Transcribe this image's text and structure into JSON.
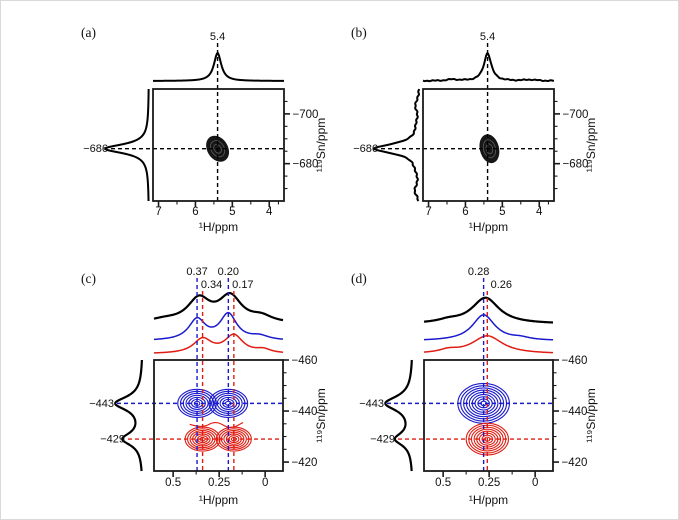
{
  "figure": {
    "background": "#ffffff",
    "units": "ppm",
    "palette": {
      "black": "#000000",
      "blue": "#1a1acd",
      "red": "#e01d12"
    }
  },
  "chart_data": [
    {
      "panel_id": "a",
      "panel_label": "(a)",
      "row": "top",
      "type": "heatmap",
      "subtype": "2D 1H-119Sn correlation NMR contour plot",
      "xlabel": "¹H/ppm",
      "ylabel": "¹¹⁹Sn/ppm",
      "xlim": [
        7.15,
        3.6
      ],
      "ylim": [
        -710,
        -665
      ],
      "x_ticks": [
        7,
        6,
        5,
        4
      ],
      "x_tick_labels": [
        "7",
        "6",
        "5",
        "4"
      ],
      "x_minor": [
        6.5,
        5.5,
        4.5,
        3.75
      ],
      "y_ticks": [
        -700,
        -680
      ],
      "y_tick_labels": [
        "−700",
        "−680"
      ],
      "y_minor": [
        -705,
        -695,
        -690,
        -685,
        -675,
        -670
      ],
      "cross_peaks": [
        {
          "style": "filled",
          "color": "#161616",
          "rings": 0,
          "peaks": [
            {
              "x": 5.4,
              "y": -686,
              "wx": 0.28,
              "wy": 5.6,
              "rot": -32
            }
          ]
        }
      ],
      "x_markers": [
        {
          "value": 5.4,
          "label": "5.4",
          "color": "#000000",
          "row": 0,
          "dx": 0
        }
      ],
      "y_markers": [
        {
          "value": -686,
          "label": "−686",
          "color": "#000000",
          "text_color": "#000000",
          "line_start": 40
        }
      ],
      "projections": {
        "top": [
          {
            "color": "#000000",
            "peaks": [
              {
                "x": 5.4,
                "a": 1,
                "w": 0.12
              }
            ],
            "noise": 0
          }
        ],
        "left": [
          {
            "color": "#000000",
            "peaks": [
              {
                "y": -686,
                "a": 1,
                "w": 2.2
              }
            ],
            "noise": 0
          }
        ]
      }
    },
    {
      "panel_id": "b",
      "panel_label": "(b)",
      "row": "top",
      "type": "heatmap",
      "subtype": "2D 1H-119Sn correlation NMR contour plot",
      "xlabel": "¹H/ppm",
      "ylabel": "¹¹⁹Sn/ppm",
      "xlim": [
        7.15,
        3.6
      ],
      "ylim": [
        -710,
        -665
      ],
      "x_ticks": [
        7,
        6,
        5,
        4
      ],
      "x_tick_labels": [
        "7",
        "6",
        "5",
        "4"
      ],
      "x_minor": [
        6.5,
        5.5,
        4.5,
        3.75
      ],
      "y_ticks": [
        -700,
        -680
      ],
      "y_tick_labels": [
        "−700",
        "−680"
      ],
      "y_minor": [
        -705,
        -695,
        -690,
        -685,
        -675,
        -670
      ],
      "cross_peaks": [
        {
          "style": "filled",
          "color": "#161616",
          "rings": 0,
          "peaks": [
            {
              "x": 5.35,
              "y": -686,
              "wx": 0.26,
              "wy": 5.9,
              "rot": -14
            }
          ]
        }
      ],
      "x_markers": [
        {
          "value": 5.4,
          "label": "5.4",
          "color": "#000000",
          "row": 0,
          "dx": 0
        }
      ],
      "y_markers": [
        {
          "value": -686,
          "label": "−686",
          "color": "#000000",
          "text_color": "#000000",
          "line_start": 40
        }
      ],
      "projections": {
        "top": [
          {
            "color": "#000000",
            "peaks": [
              {
                "x": 5.4,
                "a": 1,
                "w": 0.12
              },
              {
                "x": 6.35,
                "a": 0.05,
                "w": 0.18
              },
              {
                "x": 4.25,
                "a": 0.04,
                "w": 0.2
              }
            ],
            "noise": 0.02
          }
        ],
        "left": [
          {
            "color": "#000000",
            "peaks": [
              {
                "y": -686,
                "a": 1,
                "w": 2.4
              },
              {
                "y": -703,
                "a": 0.06,
                "w": 2.2
              },
              {
                "y": -669,
                "a": 0.07,
                "w": 2.2
              }
            ],
            "noise": 0.025
          }
        ]
      }
    },
    {
      "panel_id": "c",
      "panel_label": "(c)",
      "row": "bottom",
      "type": "heatmap",
      "subtype": "2D 1H-119Sn correlation NMR contour plot",
      "xlabel": "¹H/ppm",
      "ylabel": "¹¹⁹Sn/ppm",
      "xlim": [
        0.604,
        -0.097
      ],
      "ylim": [
        -460,
        -416.5
      ],
      "x_ticks": [
        0.5,
        0.25,
        0
      ],
      "x_tick_labels": [
        "0.5",
        "0.25",
        "0"
      ],
      "x_minor": [
        0.375,
        0.125
      ],
      "y_ticks": [
        -460,
        -440,
        -420
      ],
      "y_tick_labels": [
        "−460",
        "−440",
        "−420"
      ],
      "y_minor": [
        -455,
        -450,
        -445,
        -435,
        -430,
        -425
      ],
      "cross_peaks": [
        {
          "style": "rings",
          "color": "#1a1acd",
          "rings": 7,
          "peaks": [
            {
              "x": 0.37,
              "y": -443,
              "wx": 0.105,
              "wy": 5.5
            },
            {
              "x": 0.2,
              "y": -443,
              "wx": 0.105,
              "wy": 5.5
            }
          ]
        },
        {
          "style": "rings",
          "color": "#e01d12",
          "rings": 7,
          "peaks": [
            {
              "x": 0.34,
              "y": -429,
              "wx": 0.095,
              "wy": 4.7
            },
            {
              "x": 0.17,
              "y": -429,
              "wx": 0.095,
              "wy": 4.7
            }
          ]
        }
      ],
      "extra_contours": [
        {
          "color": "#e01d12",
          "points": [
            [
              0.41,
              -434.8
            ],
            [
              0.34,
              -433.2
            ],
            [
              0.27,
              -436.3
            ],
            [
              0.19,
              -432.8
            ],
            [
              0.12,
              -435.5
            ]
          ]
        }
      ],
      "x_markers": [
        {
          "value": 0.37,
          "label": "0.37",
          "color": "#1a1acd",
          "row": 0,
          "dx": 0
        },
        {
          "value": 0.2,
          "label": "0.20",
          "color": "#1a1acd",
          "row": 0,
          "dx": 0
        },
        {
          "value": 0.34,
          "label": "0.34",
          "color": "#e01d12",
          "row": 1,
          "dx": 9
        },
        {
          "value": 0.17,
          "label": "0.17",
          "color": "#e01d12",
          "row": 1,
          "dx": 9
        }
      ],
      "y_markers": [
        {
          "value": -443,
          "label": "−443",
          "color": "#1a1acd",
          "text_color": "#000000",
          "line_start": 46
        },
        {
          "value": -429,
          "label": "−429",
          "color": "#e01d12",
          "text_color": "#000000",
          "line_start": 57
        }
      ],
      "projections": {
        "top": [
          {
            "color": "#000000",
            "peaks": [
              {
                "x": 0.36,
                "a": 0.9,
                "w": 0.075
              },
              {
                "x": 0.19,
                "a": 1,
                "w": 0.075
              },
              {
                "x": 0.55,
                "a": 0.12,
                "w": 0.1
              },
              {
                "x": 0.02,
                "a": 0.22,
                "w": 0.07
              }
            ],
            "noise": 0
          },
          {
            "color": "#1a1acd",
            "peaks": [
              {
                "x": 0.37,
                "a": 0.8,
                "w": 0.055
              },
              {
                "x": 0.2,
                "a": 1,
                "w": 0.055
              },
              {
                "x": 0.03,
                "a": 0.15,
                "w": 0.06
              }
            ],
            "noise": 0
          },
          {
            "color": "#e01d12",
            "peaks": [
              {
                "x": 0.34,
                "a": 0.8,
                "w": 0.06
              },
              {
                "x": 0.17,
                "a": 1,
                "w": 0.06
              },
              {
                "x": 0.01,
                "a": 0.2,
                "w": 0.05
              }
            ],
            "noise": 0
          }
        ],
        "left": [
          {
            "color": "#000000",
            "peaks": [
              {
                "y": -443,
                "a": 1,
                "w": 3.2
              },
              {
                "y": -429,
                "a": 0.72,
                "w": 3.0
              }
            ],
            "noise": 0
          }
        ]
      }
    },
    {
      "panel_id": "d",
      "panel_label": "(d)",
      "row": "bottom",
      "type": "heatmap",
      "subtype": "2D 1H-119Sn correlation NMR contour plot",
      "xlabel": "¹H/ppm",
      "ylabel": "¹¹⁹Sn/ppm",
      "xlim": [
        0.604,
        -0.097
      ],
      "ylim": [
        -460,
        -416.5
      ],
      "x_ticks": [
        0.5,
        0.25,
        0
      ],
      "x_tick_labels": [
        "0.5",
        "0.25",
        "0"
      ],
      "x_minor": [
        0.375,
        0.125
      ],
      "y_ticks": [
        -460,
        -440,
        -420
      ],
      "y_tick_labels": [
        "−460",
        "−440",
        "−420"
      ],
      "y_minor": [
        -455,
        -450,
        -445,
        -435,
        -430,
        -425
      ],
      "cross_peaks": [
        {
          "style": "rings",
          "color": "#1a1acd",
          "rings": 9,
          "peaks": [
            {
              "x": 0.28,
              "y": -443,
              "wx": 0.14,
              "wy": 7.8
            }
          ]
        },
        {
          "style": "rings",
          "color": "#e01d12",
          "rings": 8,
          "peaks": [
            {
              "x": 0.26,
              "y": -429,
              "wx": 0.115,
              "wy": 6.2
            }
          ]
        }
      ],
      "x_markers": [
        {
          "value": 0.28,
          "label": "0.28",
          "color": "#1a1acd",
          "row": 0,
          "dx": -5
        },
        {
          "value": 0.26,
          "label": "0.26",
          "color": "#e01d12",
          "row": 1,
          "dx": 14
        }
      ],
      "y_markers": [
        {
          "value": -443,
          "label": "−443",
          "color": "#1a1acd",
          "text_color": "#000000",
          "line_start": 46
        },
        {
          "value": -429,
          "label": "−429",
          "color": "#e01d12",
          "text_color": "#000000",
          "line_start": 57
        }
      ],
      "projections": {
        "top": [
          {
            "color": "#000000",
            "peaks": [
              {
                "x": 0.27,
                "a": 1,
                "w": 0.09
              },
              {
                "x": 0.47,
                "a": 0.1,
                "w": 0.07
              }
            ],
            "noise": 0
          },
          {
            "color": "#1a1acd",
            "peaks": [
              {
                "x": 0.28,
                "a": 1,
                "w": 0.075
              },
              {
                "x": 0.08,
                "a": 0.08,
                "w": 0.06
              }
            ],
            "noise": 0
          },
          {
            "color": "#e01d12",
            "peaks": [
              {
                "x": 0.26,
                "a": 1,
                "w": 0.1
              },
              {
                "x": 0.47,
                "a": 0.17,
                "w": 0.06
              }
            ],
            "noise": 0
          }
        ],
        "left": [
          {
            "color": "#000000",
            "peaks": [
              {
                "y": -443,
                "a": 1,
                "w": 3.4
              },
              {
                "y": -429,
                "a": 0.62,
                "w": 3.0
              }
            ],
            "noise": 0
          }
        ]
      }
    }
  ]
}
